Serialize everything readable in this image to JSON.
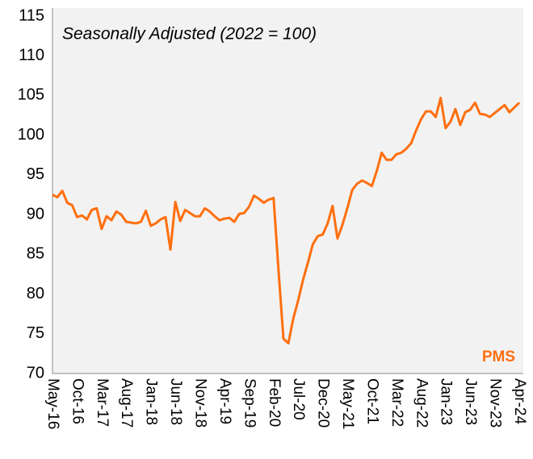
{
  "chart_data": {
    "type": "line",
    "annotations": [
      "Seasonally Adjusted (2022 = 100)",
      "PMS"
    ],
    "categories": [
      "May-16",
      null,
      null,
      null,
      null,
      "Oct-16",
      null,
      null,
      null,
      null,
      "Mar-17",
      null,
      null,
      null,
      null,
      "Aug-17",
      null,
      null,
      null,
      null,
      "Jan-18",
      null,
      null,
      null,
      null,
      "Jun-18",
      null,
      null,
      null,
      null,
      "Nov-18",
      null,
      null,
      null,
      null,
      "Apr-19",
      null,
      null,
      null,
      null,
      "Sep-19",
      null,
      null,
      null,
      null,
      "Feb-20",
      null,
      null,
      null,
      null,
      "Jul-20",
      null,
      null,
      null,
      null,
      "Dec-20",
      null,
      null,
      null,
      null,
      "May-21",
      null,
      null,
      null,
      null,
      "Oct-21",
      null,
      null,
      null,
      null,
      "Mar-22",
      null,
      null,
      null,
      null,
      "Aug-22",
      null,
      null,
      null,
      null,
      "Jan-23",
      null,
      null,
      null,
      null,
      "Jun-23",
      null,
      null,
      null,
      null,
      "Nov-23",
      null,
      null,
      null,
      null,
      "Apr-24"
    ],
    "values": [
      92.5,
      92.2,
      93.0,
      91.5,
      91.2,
      89.7,
      89.9,
      89.4,
      90.6,
      90.8,
      88.2,
      89.8,
      89.3,
      90.4,
      90.0,
      89.1,
      89.0,
      88.9,
      89.1,
      90.5,
      88.6,
      88.9,
      89.4,
      89.7,
      85.6,
      91.6,
      89.2,
      90.6,
      90.2,
      89.8,
      89.8,
      90.8,
      90.4,
      89.8,
      89.3,
      89.5,
      89.6,
      89.1,
      90.1,
      90.2,
      91.0,
      92.4,
      92.0,
      91.5,
      91.9,
      92.1,
      83.0,
      74.4,
      73.8,
      76.9,
      79.2,
      81.8,
      84.0,
      86.3,
      87.3,
      87.5,
      88.9,
      91.1,
      87.0,
      88.7,
      90.8,
      93.1,
      93.9,
      94.3,
      94.0,
      93.6,
      95.5,
      97.8,
      96.9,
      96.9,
      97.6,
      97.8,
      98.3,
      99.0,
      100.6,
      102.0,
      103.0,
      103.0,
      102.3,
      104.7,
      100.9,
      101.7,
      103.3,
      101.3,
      102.9,
      103.2,
      104.1,
      102.7,
      102.6,
      102.3,
      102.8,
      103.3,
      103.8,
      102.9,
      103.5,
      104.1
    ],
    "color": "#ff6f0f",
    "ylim": [
      70,
      115
    ],
    "yticks": [
      70,
      75,
      80,
      85,
      90,
      95,
      100,
      105,
      110,
      115
    ],
    "grid": false
  }
}
